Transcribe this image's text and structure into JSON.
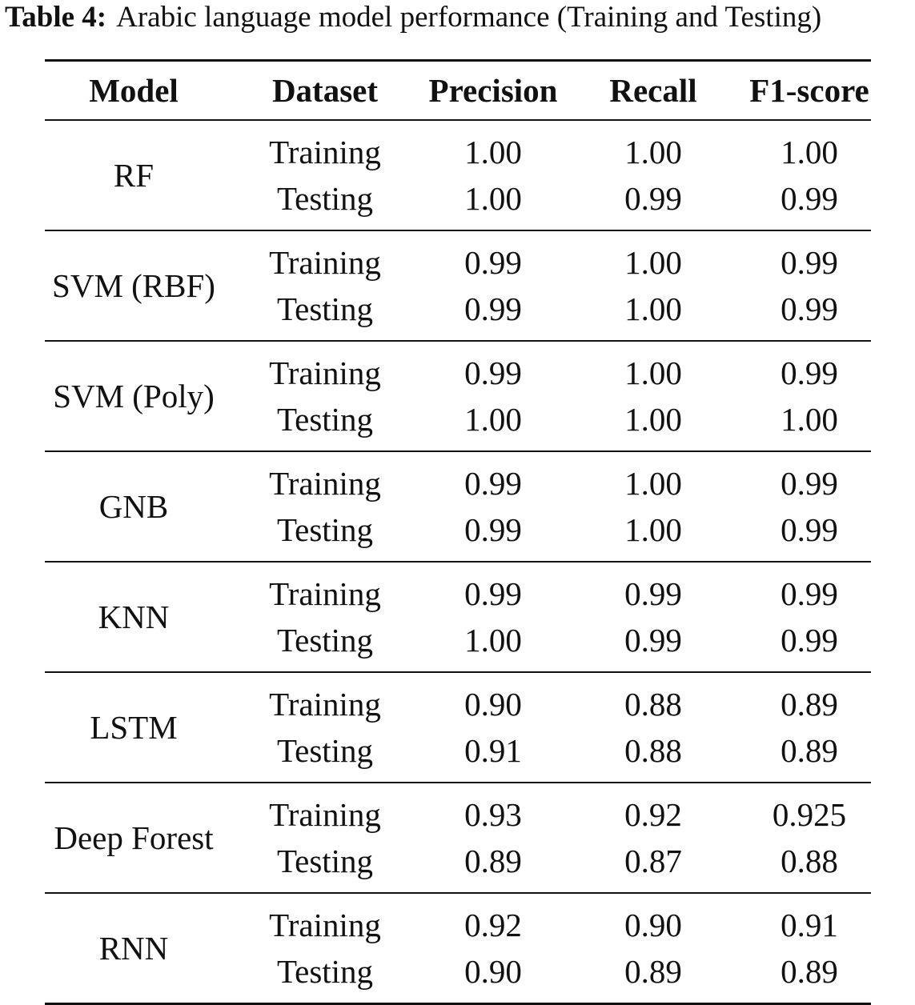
{
  "caption": {
    "label": "Table 4:",
    "text": "Arabic language model performance (Training and Testing)"
  },
  "table": {
    "headers": [
      "Model",
      "Dataset",
      "Precision",
      "Recall",
      "F1-score"
    ],
    "groups": [
      {
        "model": "RF",
        "rows": [
          {
            "dataset": "Training",
            "precision": "1.00",
            "recall": "1.00",
            "f1": "1.00"
          },
          {
            "dataset": "Testing",
            "precision": "1.00",
            "recall": "0.99",
            "f1": "0.99"
          }
        ]
      },
      {
        "model": "SVM (RBF)",
        "rows": [
          {
            "dataset": "Training",
            "precision": "0.99",
            "recall": "1.00",
            "f1": "0.99"
          },
          {
            "dataset": "Testing",
            "precision": "0.99",
            "recall": "1.00",
            "f1": "0.99"
          }
        ]
      },
      {
        "model": "SVM (Poly)",
        "rows": [
          {
            "dataset": "Training",
            "precision": "0.99",
            "recall": "1.00",
            "f1": "0.99"
          },
          {
            "dataset": "Testing",
            "precision": "1.00",
            "recall": "1.00",
            "f1": "1.00"
          }
        ]
      },
      {
        "model": "GNB",
        "rows": [
          {
            "dataset": "Training",
            "precision": "0.99",
            "recall": "1.00",
            "f1": "0.99"
          },
          {
            "dataset": "Testing",
            "precision": "0.99",
            "recall": "1.00",
            "f1": "0.99"
          }
        ]
      },
      {
        "model": "KNN",
        "rows": [
          {
            "dataset": "Training",
            "precision": "0.99",
            "recall": "0.99",
            "f1": "0.99"
          },
          {
            "dataset": "Testing",
            "precision": "1.00",
            "recall": "0.99",
            "f1": "0.99"
          }
        ]
      },
      {
        "model": "LSTM",
        "rows": [
          {
            "dataset": "Training",
            "precision": "0.90",
            "recall": "0.88",
            "f1": "0.89"
          },
          {
            "dataset": "Testing",
            "precision": "0.91",
            "recall": "0.88",
            "f1": "0.89"
          }
        ]
      },
      {
        "model": "Deep Forest",
        "rows": [
          {
            "dataset": "Training",
            "precision": "0.93",
            "recall": "0.92",
            "f1": "0.925"
          },
          {
            "dataset": "Testing",
            "precision": "0.89",
            "recall": "0.87",
            "f1": "0.88"
          }
        ]
      },
      {
        "model": "RNN",
        "rows": [
          {
            "dataset": "Training",
            "precision": "0.92",
            "recall": "0.90",
            "f1": "0.91"
          },
          {
            "dataset": "Testing",
            "precision": "0.90",
            "recall": "0.89",
            "f1": "0.89"
          }
        ]
      }
    ]
  }
}
